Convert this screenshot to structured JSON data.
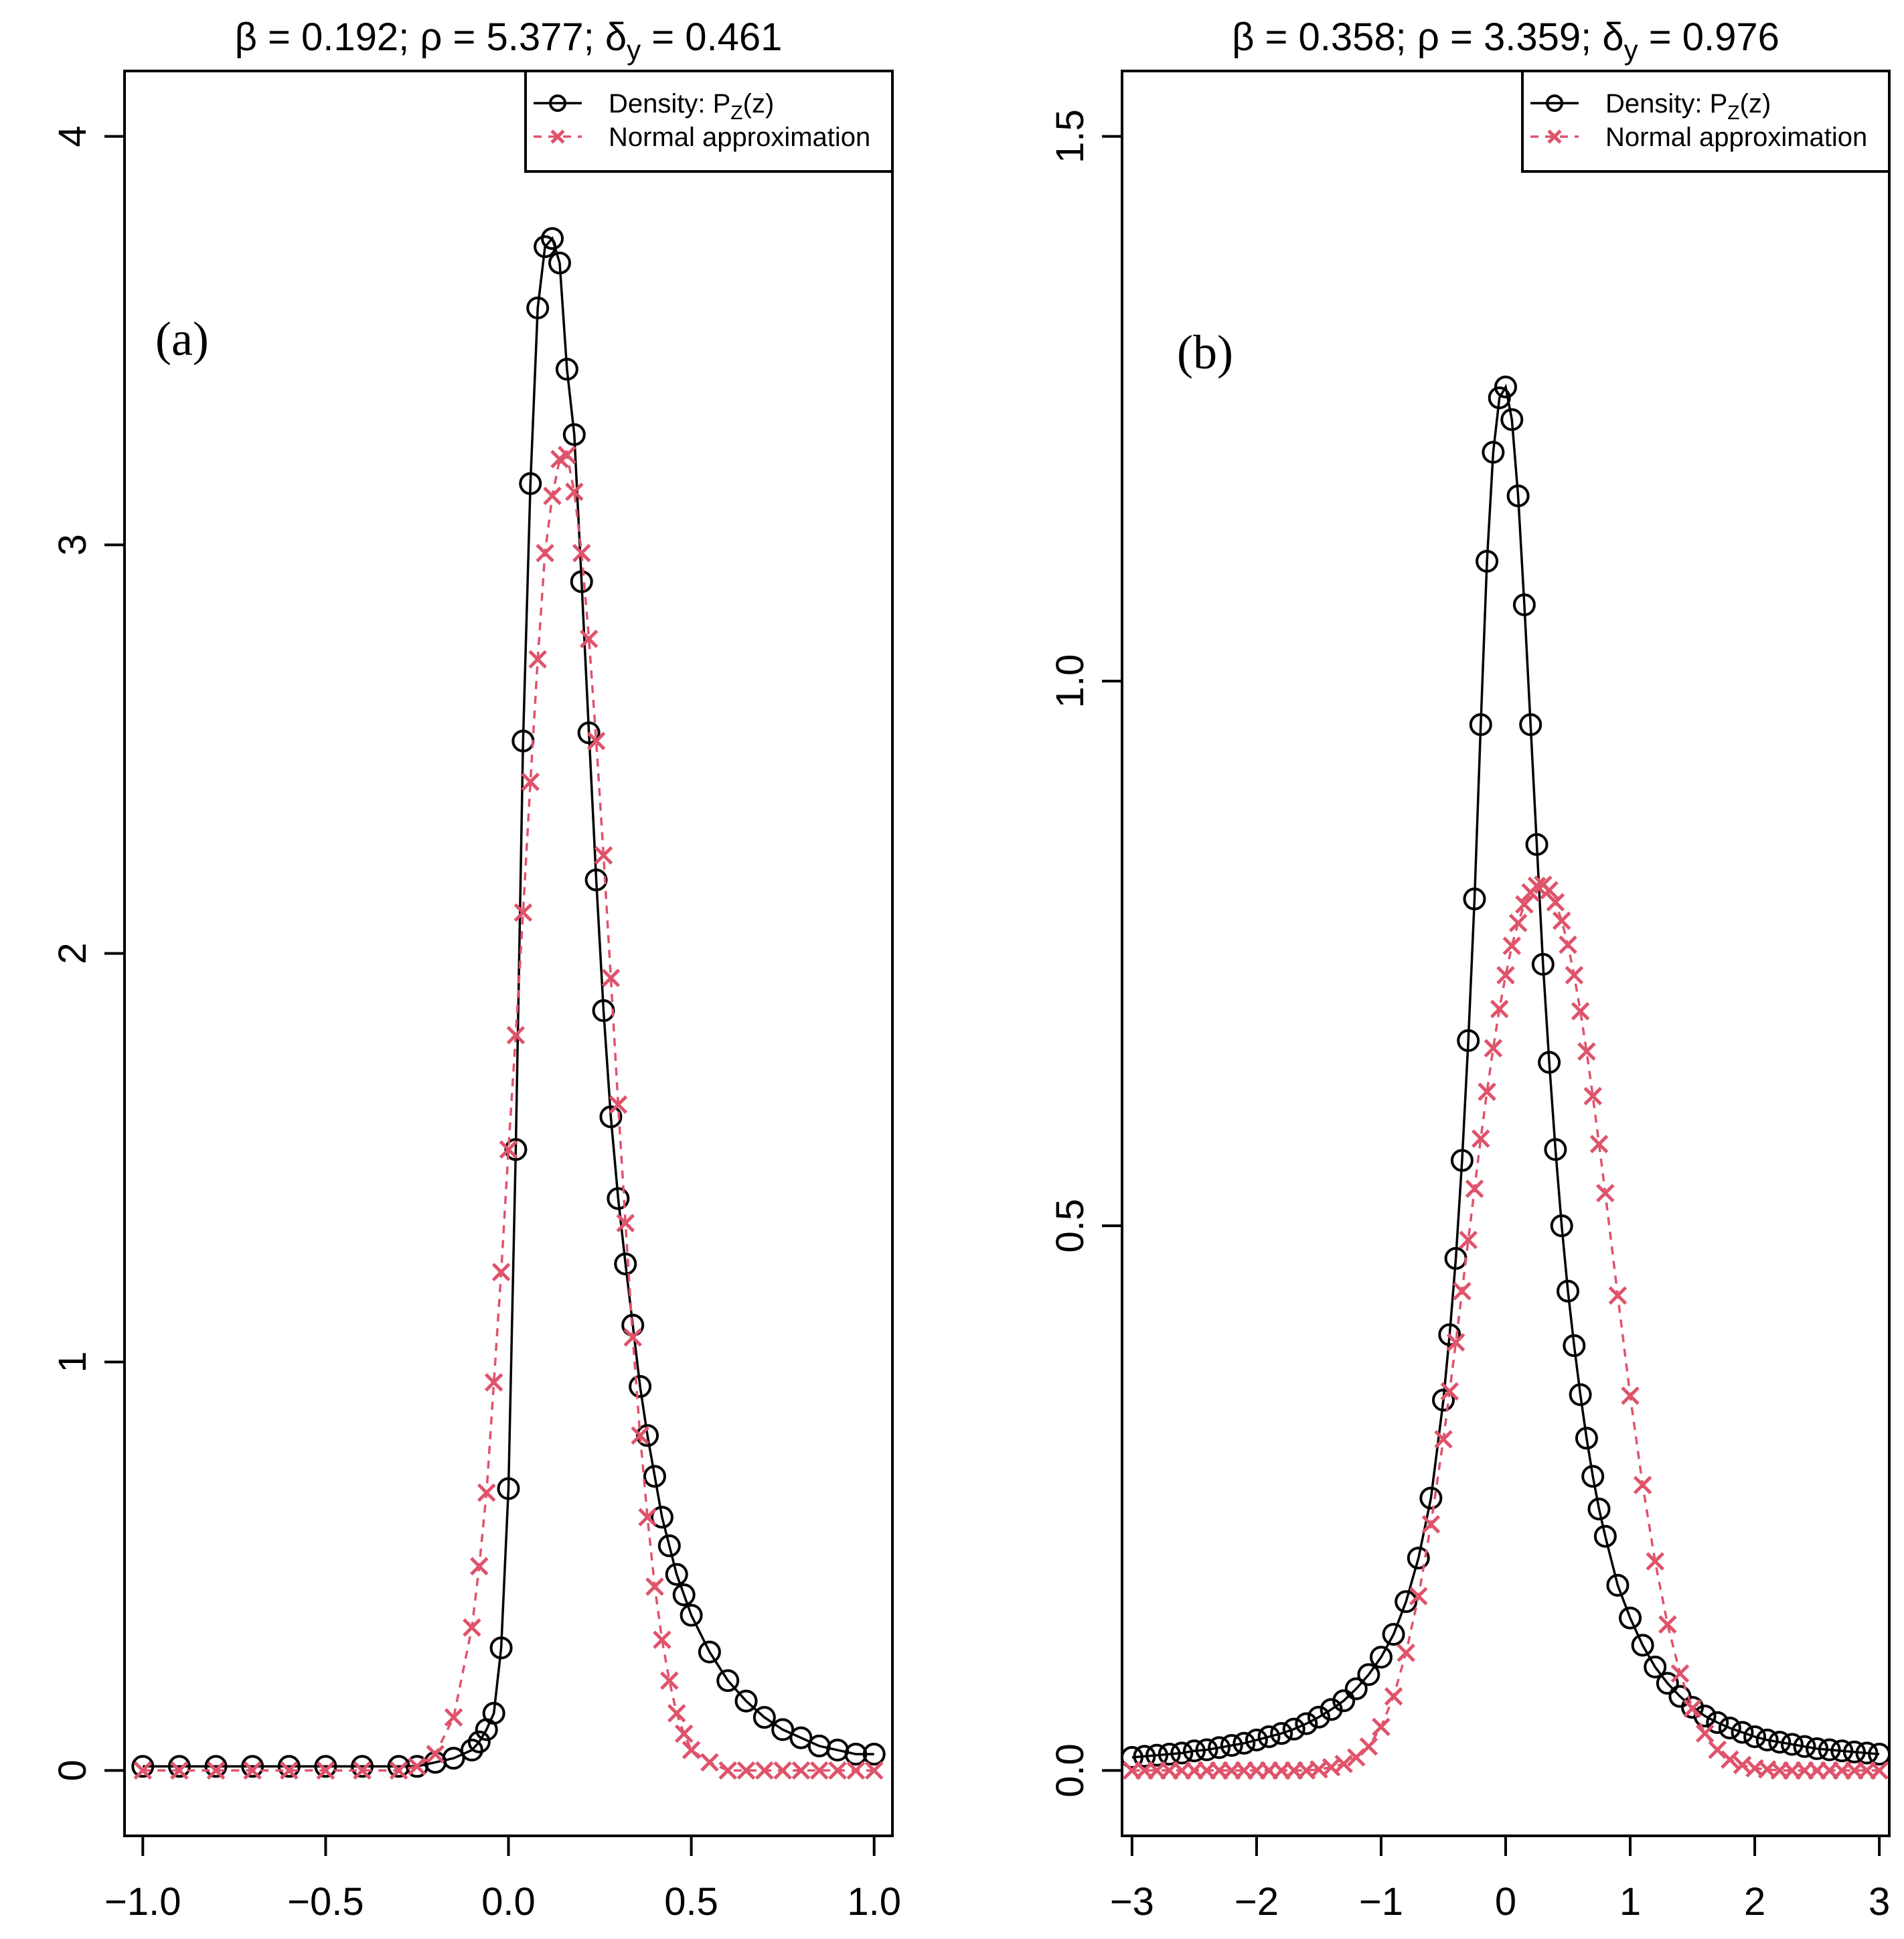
{
  "colors": {
    "density": "#000000",
    "normal": "#DF536B",
    "background": "#ffffff"
  },
  "chart_data": [
    {
      "type": "line",
      "panel_label": "(a)",
      "title": "β = 0.192;  ρ = 5.377;  δy = 0.461",
      "title_parts": {
        "beta": "β = 0.192;",
        "rho": "ρ = 5.377;",
        "delta": "δ",
        "delta_sub": "y",
        "delta_val": " = 0.461"
      },
      "xlabel": "",
      "ylabel": "",
      "xlim": [
        -1.05,
        1.05
      ],
      "ylim": [
        -0.16,
        4.16
      ],
      "xticks": [
        -1.0,
        -0.5,
        0.0,
        0.5,
        1.0
      ],
      "xtick_labels": [
        "−1.0",
        "−0.5",
        "0.0",
        "0.5",
        "1.0"
      ],
      "yticks": [
        0,
        1,
        2,
        3,
        4
      ],
      "ytick_labels": [
        "0",
        "1",
        "2",
        "3",
        "4"
      ],
      "grid": false,
      "legend_position": "top-right",
      "legend": [
        {
          "label": "Density:  P",
          "sub": "Z",
          "tail": "(z)",
          "marker": "circle",
          "line": "solid"
        },
        {
          "label": "Normal approximation",
          "sub": "",
          "tail": "",
          "marker": "cross",
          "line": "dashed"
        }
      ],
      "series": [
        {
          "name": "Density: PZ(z)",
          "marker": "circle",
          "line": "solid",
          "x": [
            -1.0,
            -0.9,
            -0.8,
            -0.7,
            -0.6,
            -0.5,
            -0.4,
            -0.3,
            -0.25,
            -0.2,
            -0.15,
            -0.1,
            -0.08,
            -0.06,
            -0.04,
            -0.02,
            0.0,
            0.02,
            0.04,
            0.06,
            0.08,
            0.1,
            0.12,
            0.14,
            0.16,
            0.18,
            0.2,
            0.22,
            0.24,
            0.26,
            0.28,
            0.3,
            0.32,
            0.34,
            0.36,
            0.38,
            0.4,
            0.42,
            0.44,
            0.46,
            0.48,
            0.5,
            0.55,
            0.6,
            0.65,
            0.7,
            0.75,
            0.8,
            0.85,
            0.9,
            0.95,
            1.0
          ],
          "y": [
            0.01,
            0.01,
            0.01,
            0.01,
            0.01,
            0.01,
            0.01,
            0.01,
            0.01,
            0.02,
            0.03,
            0.05,
            0.07,
            0.1,
            0.14,
            0.3,
            0.69,
            1.52,
            2.52,
            3.15,
            3.58,
            3.73,
            3.75,
            3.69,
            3.43,
            3.27,
            2.91,
            2.54,
            2.18,
            1.86,
            1.6,
            1.4,
            1.24,
            1.09,
            0.94,
            0.82,
            0.72,
            0.62,
            0.55,
            0.48,
            0.43,
            0.38,
            0.29,
            0.22,
            0.17,
            0.13,
            0.1,
            0.08,
            0.06,
            0.05,
            0.04,
            0.04
          ]
        },
        {
          "name": "Normal approximation",
          "marker": "cross",
          "line": "dashed",
          "x": [
            -1.0,
            -0.9,
            -0.8,
            -0.7,
            -0.6,
            -0.5,
            -0.4,
            -0.3,
            -0.25,
            -0.2,
            -0.15,
            -0.1,
            -0.08,
            -0.06,
            -0.04,
            -0.02,
            0.0,
            0.02,
            0.04,
            0.06,
            0.08,
            0.1,
            0.12,
            0.14,
            0.16,
            0.18,
            0.2,
            0.22,
            0.24,
            0.26,
            0.28,
            0.3,
            0.32,
            0.34,
            0.36,
            0.38,
            0.4,
            0.42,
            0.44,
            0.46,
            0.48,
            0.5,
            0.55,
            0.6,
            0.65,
            0.7,
            0.75,
            0.8,
            0.85,
            0.9,
            0.95,
            1.0
          ],
          "y": [
            0,
            0,
            0,
            0,
            0,
            0,
            0,
            0.0,
            0.01,
            0.04,
            0.13,
            0.35,
            0.5,
            0.68,
            0.95,
            1.22,
            1.52,
            1.8,
            2.1,
            2.42,
            2.72,
            2.98,
            3.12,
            3.21,
            3.22,
            3.13,
            2.98,
            2.77,
            2.52,
            2.24,
            1.94,
            1.63,
            1.34,
            1.06,
            0.82,
            0.62,
            0.45,
            0.32,
            0.22,
            0.14,
            0.09,
            0.05,
            0.02,
            0.0,
            0,
            0,
            0,
            0,
            0,
            0,
            0,
            0
          ]
        }
      ]
    },
    {
      "type": "line",
      "panel_label": "(b)",
      "title": "β = 0.358;  ρ = 3.359;  δy = 0.976",
      "title_parts": {
        "beta": "β = 0.358;",
        "rho": "ρ = 3.359;",
        "delta": "δ",
        "delta_sub": "y",
        "delta_val": " = 0.976"
      },
      "xlabel": "",
      "ylabel": "",
      "xlim": [
        -3.08,
        3.08
      ],
      "ylim": [
        -0.06,
        1.56
      ],
      "xticks": [
        -3,
        -2,
        -1,
        0,
        1,
        2,
        3
      ],
      "xtick_labels": [
        "−3",
        "−2",
        "−1",
        "0",
        "1",
        "2",
        "3"
      ],
      "yticks": [
        0.0,
        0.5,
        1.0,
        1.5
      ],
      "ytick_labels": [
        "0.0",
        "0.5",
        "1.0",
        "1.5"
      ],
      "grid": false,
      "legend_position": "top-right",
      "legend": [
        {
          "label": "Density:  P",
          "sub": "Z",
          "tail": "(z)",
          "marker": "circle",
          "line": "solid"
        },
        {
          "label": "Normal approximation",
          "sub": "",
          "tail": "",
          "marker": "cross",
          "line": "dashed"
        }
      ],
      "series": [
        {
          "name": "Density: PZ(z)",
          "marker": "circle",
          "line": "solid",
          "x": [
            -3.0,
            -2.9,
            -2.8,
            -2.7,
            -2.6,
            -2.5,
            -2.4,
            -2.3,
            -2.2,
            -2.1,
            -2.0,
            -1.9,
            -1.8,
            -1.7,
            -1.6,
            -1.5,
            -1.4,
            -1.3,
            -1.2,
            -1.1,
            -1.0,
            -0.9,
            -0.8,
            -0.7,
            -0.6,
            -0.5,
            -0.45,
            -0.4,
            -0.35,
            -0.3,
            -0.25,
            -0.2,
            -0.15,
            -0.1,
            -0.05,
            0.0,
            0.05,
            0.1,
            0.15,
            0.2,
            0.25,
            0.3,
            0.35,
            0.4,
            0.45,
            0.5,
            0.55,
            0.6,
            0.65,
            0.7,
            0.75,
            0.8,
            0.9,
            1.0,
            1.1,
            1.2,
            1.3,
            1.4,
            1.5,
            1.6,
            1.7,
            1.8,
            1.9,
            2.0,
            2.1,
            2.2,
            2.3,
            2.4,
            2.5,
            2.6,
            2.7,
            2.8,
            2.9,
            3.0
          ],
          "y": [
            0.012,
            0.013,
            0.014,
            0.015,
            0.016,
            0.018,
            0.019,
            0.021,
            0.023,
            0.025,
            0.028,
            0.031,
            0.034,
            0.038,
            0.043,
            0.049,
            0.056,
            0.064,
            0.075,
            0.088,
            0.104,
            0.125,
            0.155,
            0.195,
            0.25,
            0.34,
            0.4,
            0.47,
            0.56,
            0.67,
            0.8,
            0.96,
            1.11,
            1.21,
            1.26,
            1.27,
            1.24,
            1.17,
            1.07,
            0.96,
            0.85,
            0.74,
            0.65,
            0.57,
            0.5,
            0.44,
            0.39,
            0.345,
            0.305,
            0.27,
            0.24,
            0.215,
            0.17,
            0.14,
            0.115,
            0.095,
            0.08,
            0.068,
            0.058,
            0.05,
            0.044,
            0.039,
            0.035,
            0.031,
            0.028,
            0.026,
            0.024,
            0.022,
            0.02,
            0.019,
            0.018,
            0.017,
            0.016,
            0.015
          ]
        },
        {
          "name": "Normal approximation",
          "marker": "cross",
          "line": "dashed",
          "x": [
            -3.0,
            -2.9,
            -2.8,
            -2.7,
            -2.6,
            -2.5,
            -2.4,
            -2.3,
            -2.2,
            -2.1,
            -2.0,
            -1.9,
            -1.8,
            -1.7,
            -1.6,
            -1.5,
            -1.4,
            -1.3,
            -1.2,
            -1.1,
            -1.0,
            -0.9,
            -0.8,
            -0.7,
            -0.6,
            -0.5,
            -0.45,
            -0.4,
            -0.35,
            -0.3,
            -0.25,
            -0.2,
            -0.15,
            -0.1,
            -0.05,
            0.0,
            0.05,
            0.1,
            0.15,
            0.2,
            0.25,
            0.3,
            0.35,
            0.4,
            0.45,
            0.5,
            0.55,
            0.6,
            0.65,
            0.7,
            0.75,
            0.8,
            0.9,
            1.0,
            1.1,
            1.2,
            1.3,
            1.4,
            1.5,
            1.6,
            1.7,
            1.8,
            1.9,
            2.0,
            2.1,
            2.2,
            2.3,
            2.4,
            2.5,
            2.6,
            2.7,
            2.8,
            2.9,
            3.0
          ],
          "y": [
            0,
            0,
            0,
            0,
            0,
            0,
            0,
            0,
            0,
            0,
            0,
            0,
            0,
            0,
            0,
            0.001,
            0.003,
            0.006,
            0.012,
            0.022,
            0.04,
            0.068,
            0.108,
            0.16,
            0.226,
            0.304,
            0.348,
            0.393,
            0.44,
            0.487,
            0.534,
            0.58,
            0.623,
            0.663,
            0.699,
            0.73,
            0.757,
            0.778,
            0.795,
            0.806,
            0.812,
            0.813,
            0.808,
            0.797,
            0.78,
            0.758,
            0.73,
            0.697,
            0.66,
            0.619,
            0.575,
            0.53,
            0.436,
            0.344,
            0.262,
            0.192,
            0.134,
            0.089,
            0.057,
            0.034,
            0.019,
            0.01,
            0.005,
            0.002,
            0.001,
            0,
            0,
            0,
            0,
            0,
            0,
            0,
            0,
            0
          ]
        }
      ]
    }
  ]
}
